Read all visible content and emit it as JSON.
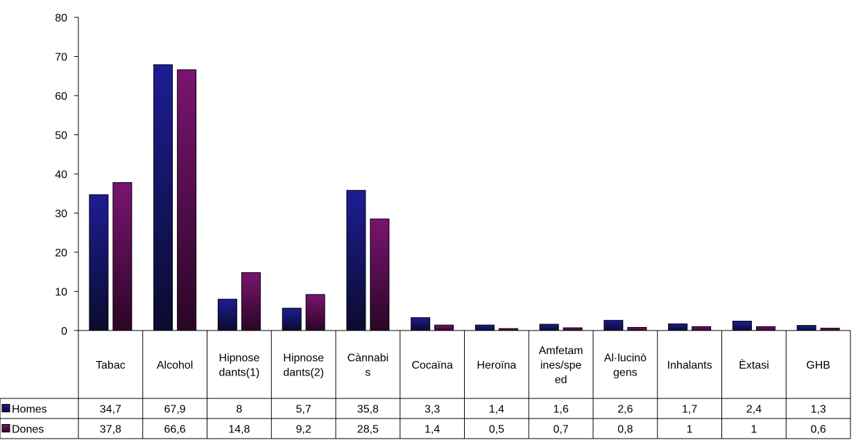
{
  "chart_data": {
    "type": "bar",
    "categories": [
      [
        "Tabac"
      ],
      [
        "Alcohol"
      ],
      [
        "Hipnose",
        "dants(1)"
      ],
      [
        "Hipnose",
        "dants(2)"
      ],
      [
        "Cànnabi",
        "s"
      ],
      [
        "Cocaïna"
      ],
      [
        "Heroïna"
      ],
      [
        "Amfetam",
        "ines/spe",
        "ed"
      ],
      [
        "Al·lucinò",
        "gens"
      ],
      [
        "Inhalants"
      ],
      [
        "Èxtasi"
      ],
      [
        "GHB"
      ]
    ],
    "series": [
      {
        "name": "Homes",
        "color": "#1a1a80",
        "values": [
          34.7,
          67.9,
          8,
          5.7,
          35.8,
          3.3,
          1.4,
          1.6,
          2.6,
          1.7,
          2.4,
          1.3
        ],
        "labels": [
          "34,7",
          "67,9",
          "8",
          "5,7",
          "35,8",
          "3,3",
          "1,4",
          "1,6",
          "2,6",
          "1,7",
          "2,4",
          "1,3"
        ]
      },
      {
        "name": "Dones",
        "color": "#6a0f5e",
        "values": [
          37.8,
          66.6,
          14.8,
          9.2,
          28.5,
          1.4,
          0.5,
          0.7,
          0.8,
          1,
          1,
          0.6
        ],
        "labels": [
          "37,8",
          "66,6",
          "14,8",
          "9,2",
          "28,5",
          "1,4",
          "0,5",
          "0,7",
          "0,8",
          "1",
          "1",
          "0,6"
        ]
      }
    ],
    "yticks": [
      "0",
      "10",
      "20",
      "30",
      "40",
      "50",
      "60",
      "70",
      "80"
    ],
    "ylim": [
      0,
      80
    ],
    "grid": false,
    "legend": "data-table"
  }
}
